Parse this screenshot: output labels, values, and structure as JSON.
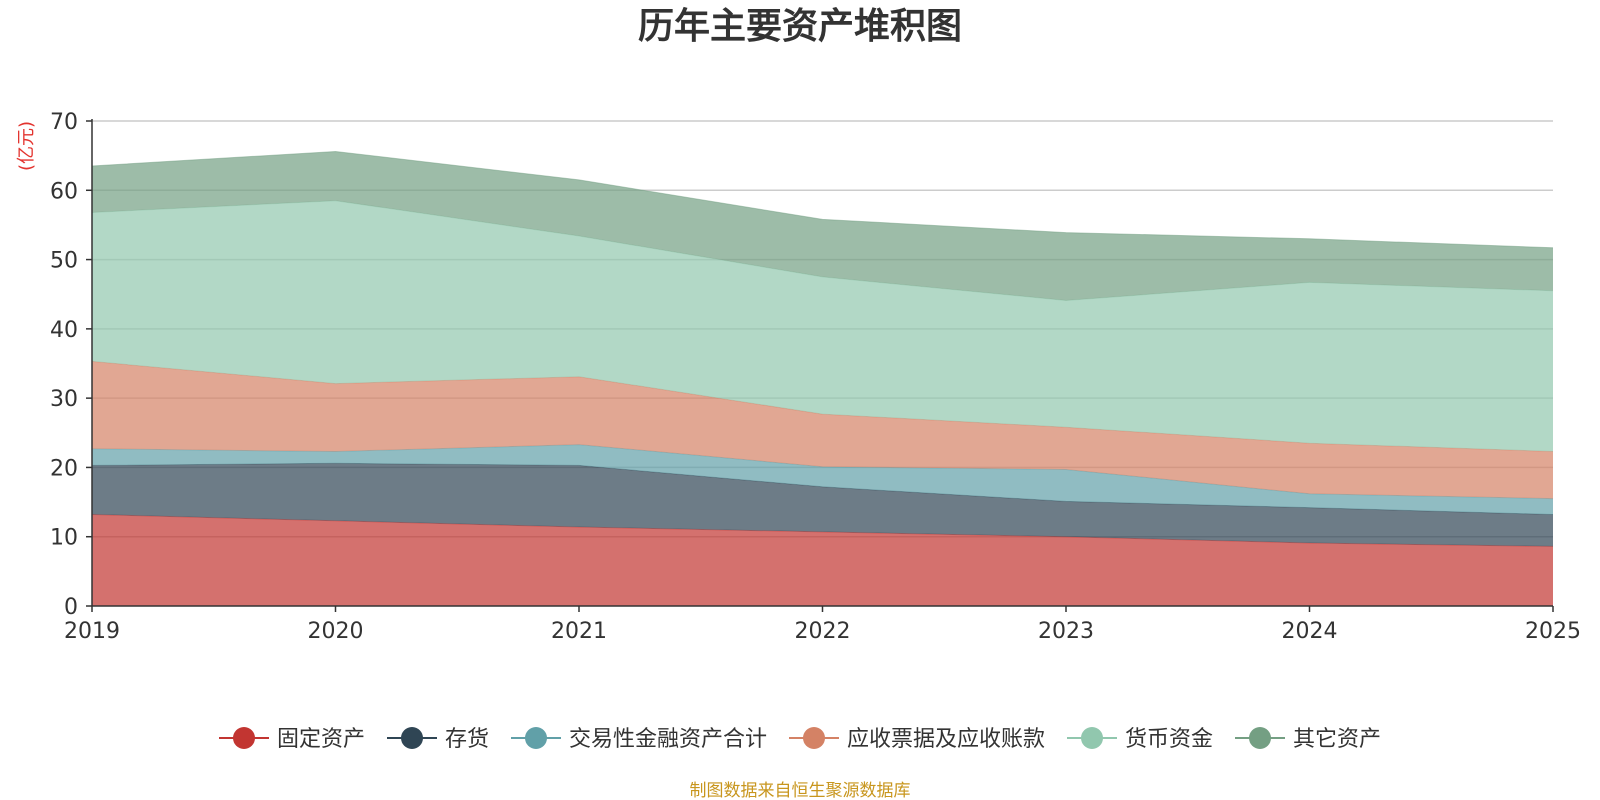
{
  "chart_data": {
    "type": "area",
    "stacked": true,
    "title": "历年主要资产堆积图",
    "ylabel": "(亿元)",
    "xlabel": "",
    "x": [
      "2019",
      "2020",
      "2021",
      "2022",
      "2023",
      "2024",
      "2025"
    ],
    "ylim": [
      0,
      70
    ],
    "yticks": [
      0,
      10,
      20,
      30,
      40,
      50,
      60,
      70
    ],
    "grid": true,
    "legend_position": "bottom",
    "series": [
      {
        "name": "固定资产",
        "color": "#c23531",
        "values": [
          13.2,
          12.3,
          11.4,
          10.7,
          10.0,
          9.1,
          8.6
        ]
      },
      {
        "name": "存货",
        "color": "#2f4554",
        "values": [
          7.1,
          8.3,
          8.9,
          6.5,
          5.1,
          5.1,
          4.6
        ]
      },
      {
        "name": "交易性金融资产合计",
        "color": "#61a0a8",
        "values": [
          2.4,
          1.7,
          3.0,
          2.9,
          4.6,
          2.0,
          2.3
        ]
      },
      {
        "name": "应收票据及应收账款",
        "color": "#d48265",
        "values": [
          12.6,
          9.8,
          9.8,
          7.6,
          6.1,
          7.3,
          6.8
        ]
      },
      {
        "name": "货币资金",
        "color": "#91c7ae",
        "values": [
          21.5,
          26.4,
          20.3,
          19.8,
          18.3,
          23.2,
          23.2
        ]
      },
      {
        "name": "其它资产",
        "color": "#749f83",
        "values": [
          6.7,
          7.1,
          8.1,
          8.3,
          9.8,
          6.3,
          6.2
        ]
      }
    ],
    "source_note": "制图数据来自恒生聚源数据库"
  }
}
